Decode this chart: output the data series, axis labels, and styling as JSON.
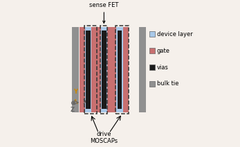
{
  "bg_color": "#f5f0eb",
  "colors": {
    "device_layer": "#a8c8e8",
    "gate": "#c87070",
    "vias": "#1a1a1a",
    "bulk_tie": "#909090"
  },
  "legend_labels": [
    "device layer",
    "gate",
    "vias",
    "bulk tie"
  ],
  "annotation_sense": "sense FET",
  "annotation_drive1": "drive",
  "annotation_drive2": "MOSCAPs",
  "figsize": [
    3.47,
    2.12
  ],
  "dpi": 100
}
